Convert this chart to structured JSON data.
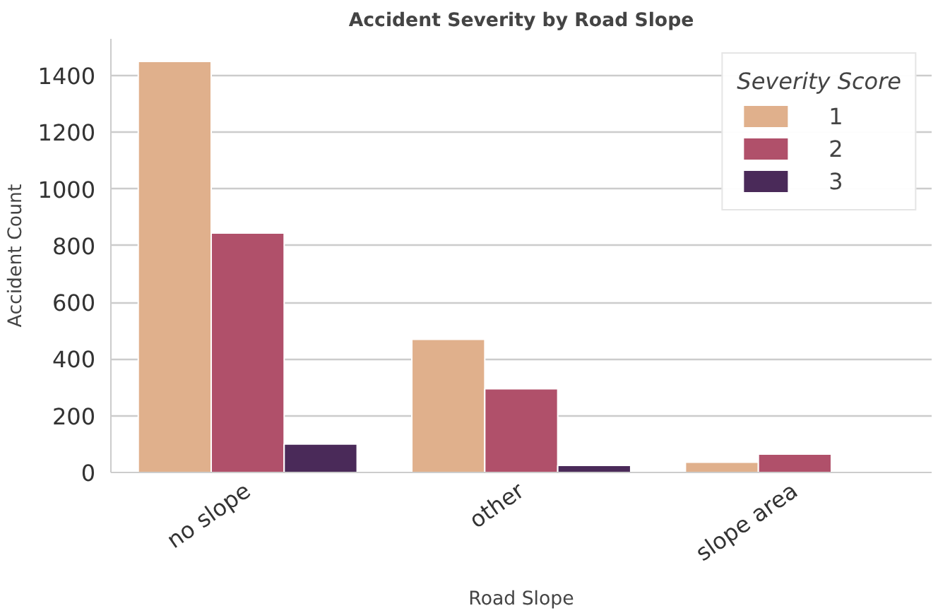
{
  "chart_data": {
    "type": "bar",
    "title": "Accident Severity by Road Slope",
    "xlabel": "Road Slope",
    "ylabel": "Accident Count",
    "legend_title": "Severity Score",
    "categories": [
      "no slope",
      "other",
      "slope area"
    ],
    "series": [
      {
        "name": "1",
        "color": "#e0b08c",
        "values": [
          1450,
          470,
          36
        ]
      },
      {
        "name": "2",
        "color": "#b0506a",
        "values": [
          845,
          295,
          65
        ]
      },
      {
        "name": "3",
        "color": "#4a2a59",
        "values": [
          100,
          25,
          null
        ]
      }
    ],
    "ylim": [
      0,
      1530
    ],
    "yticks": [
      0,
      200,
      400,
      600,
      800,
      1000,
      1200,
      1400
    ],
    "grid": "y",
    "legend": "top right"
  }
}
